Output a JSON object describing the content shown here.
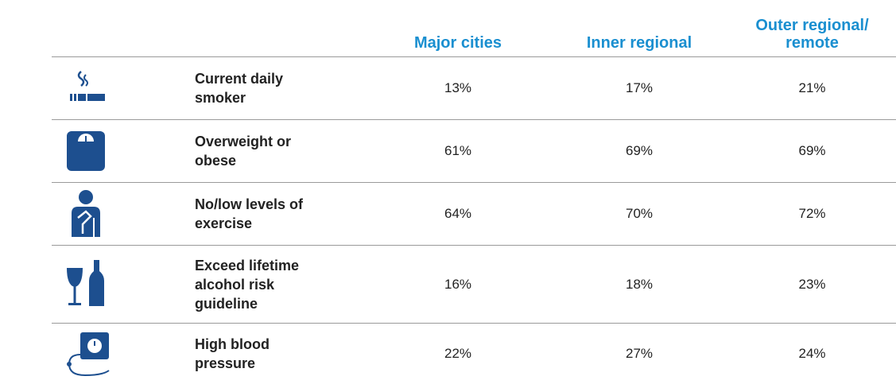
{
  "table": {
    "columns": [
      "Major cities",
      "Inner regional",
      "Outer regional/ remote"
    ],
    "rows": [
      {
        "label": "Current daily smoker",
        "values": [
          "13%",
          "17%",
          "21%"
        ]
      },
      {
        "label": "Overweight or obese",
        "values": [
          "61%",
          "69%",
          "69%"
        ]
      },
      {
        "label": "No/low levels of exercise",
        "values": [
          "64%",
          "70%",
          "72%"
        ]
      },
      {
        "label": "Exceed lifetime alcohol risk guideline",
        "values": [
          "16%",
          "18%",
          "23%"
        ]
      },
      {
        "label": "High blood pressure",
        "values": [
          "22%",
          "27%",
          "24%"
        ]
      }
    ]
  }
}
